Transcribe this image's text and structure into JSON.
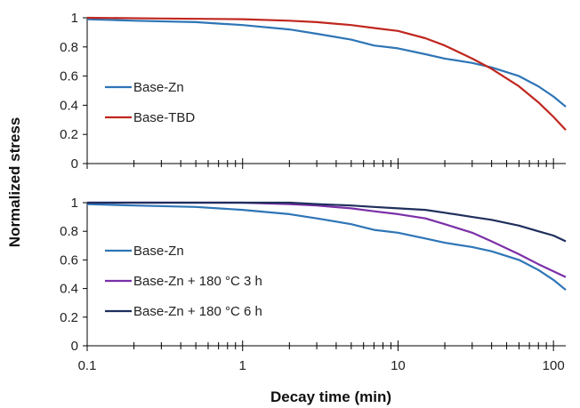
{
  "ylabel": "Normalized stress",
  "xlabel": "Decay time (min)",
  "colors": {
    "base_zn": "#2E75B6",
    "base_tbd": "#C0271F",
    "heat_3h": "#7B2FA8",
    "heat_6h": "#1F2F5C",
    "axis": "#000000"
  },
  "chart_data": [
    {
      "type": "line",
      "xscale": "log",
      "xlim": [
        0.1,
        120
      ],
      "ylim": [
        0,
        1
      ],
      "xticks": [
        "0.1",
        "1",
        "10",
        "100"
      ],
      "yticks": [
        "0",
        "0.2",
        "0.4",
        "0.6",
        "0.8",
        "1"
      ],
      "legend_position": "left",
      "series": [
        {
          "name": "Base-Zn",
          "color": "#2E75B6",
          "x": [
            0.1,
            0.2,
            0.5,
            1,
            2,
            3,
            5,
            7,
            10,
            15,
            20,
            30,
            40,
            60,
            80,
            100,
            120
          ],
          "y": [
            0.99,
            0.98,
            0.97,
            0.95,
            0.92,
            0.89,
            0.85,
            0.81,
            0.79,
            0.75,
            0.72,
            0.69,
            0.66,
            0.6,
            0.53,
            0.46,
            0.39
          ]
        },
        {
          "name": "Base-TBD",
          "color": "#C0271F",
          "x": [
            0.1,
            0.3,
            1,
            2,
            3,
            5,
            7,
            10,
            15,
            20,
            30,
            40,
            60,
            80,
            100,
            120
          ],
          "y": [
            1.0,
            0.995,
            0.99,
            0.98,
            0.97,
            0.95,
            0.93,
            0.91,
            0.86,
            0.81,
            0.72,
            0.65,
            0.53,
            0.42,
            0.32,
            0.23
          ]
        }
      ]
    },
    {
      "type": "line",
      "xscale": "log",
      "xlim": [
        0.1,
        120
      ],
      "ylim": [
        0,
        1
      ],
      "xticks": [
        "0.1",
        "1",
        "10",
        "100"
      ],
      "yticks": [
        "0",
        "0.2",
        "0.4",
        "0.6",
        "0.8",
        "1"
      ],
      "legend_position": "left",
      "series": [
        {
          "name": "Base-Zn",
          "color": "#2E75B6",
          "x": [
            0.1,
            0.2,
            0.5,
            1,
            2,
            3,
            5,
            7,
            10,
            15,
            20,
            30,
            40,
            60,
            80,
            100,
            120
          ],
          "y": [
            0.99,
            0.98,
            0.97,
            0.95,
            0.92,
            0.89,
            0.85,
            0.81,
            0.79,
            0.75,
            0.72,
            0.69,
            0.66,
            0.6,
            0.53,
            0.46,
            0.39
          ]
        },
        {
          "name": "Base-Zn + 180 °C 3 h",
          "color": "#7B2FA8",
          "x": [
            0.1,
            0.5,
            1,
            2,
            3,
            5,
            7,
            10,
            15,
            20,
            30,
            40,
            60,
            80,
            100,
            120
          ],
          "y": [
            1.0,
            1.0,
            1.0,
            0.99,
            0.98,
            0.96,
            0.94,
            0.92,
            0.89,
            0.85,
            0.79,
            0.73,
            0.64,
            0.57,
            0.52,
            0.48
          ]
        },
        {
          "name": "Base-Zn + 180 °C 6 h",
          "color": "#1F2F5C",
          "x": [
            0.1,
            0.5,
            1,
            2,
            3,
            5,
            7,
            10,
            15,
            20,
            30,
            40,
            60,
            80,
            100,
            120
          ],
          "y": [
            1.0,
            1.0,
            1.0,
            1.0,
            0.99,
            0.98,
            0.97,
            0.96,
            0.95,
            0.93,
            0.9,
            0.88,
            0.84,
            0.8,
            0.77,
            0.73
          ]
        }
      ]
    }
  ]
}
